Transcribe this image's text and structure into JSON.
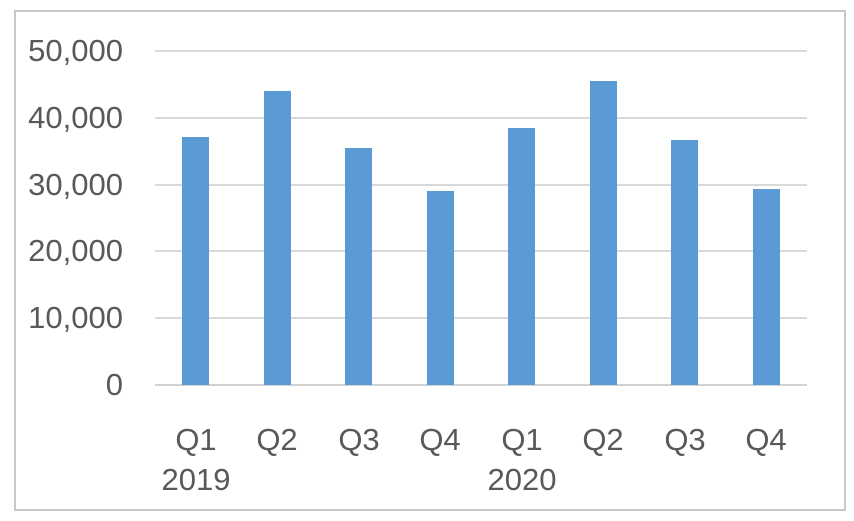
{
  "chart_data": {
    "type": "bar",
    "title": "",
    "xlabel": "",
    "ylabel": "",
    "categories": [
      "Q1",
      "Q2",
      "Q3",
      "Q4",
      "Q1",
      "Q2",
      "Q3",
      "Q4"
    ],
    "group_labels": [
      {
        "label": "2019",
        "under_category_index": 0
      },
      {
        "label": "2020",
        "under_category_index": 4
      }
    ],
    "values": [
      37200,
      44000,
      35500,
      29000,
      38400,
      45500,
      36700,
      29400
    ],
    "y_ticks": [
      "50,000",
      "40,000",
      "30,000",
      "20,000",
      "10,000",
      "0"
    ],
    "y_tick_values": [
      50000,
      40000,
      30000,
      20000,
      10000,
      0
    ],
    "ylim": [
      0,
      50000
    ],
    "grid": true,
    "legend": "none",
    "bar_color": "#5b9bd5",
    "gridline_color": "#d9d9d9",
    "axis_text_color": "#595959",
    "chart_border_color": "#c8c8c8",
    "background_color": "#ffffff"
  }
}
